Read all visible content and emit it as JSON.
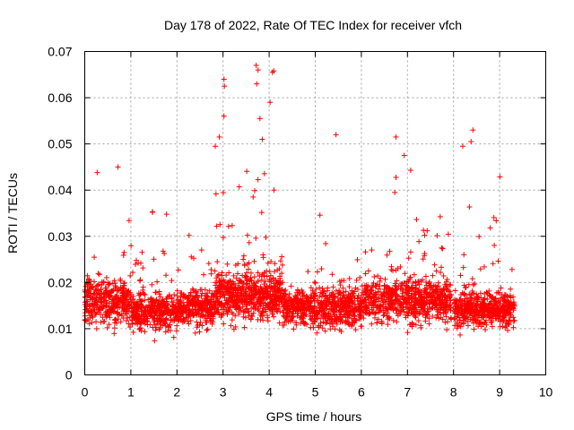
{
  "chart_data": {
    "type": "scatter",
    "title": "Day 178 of 2022, Rate Of TEC Index for receiver vfch",
    "xlabel": "GPS time / hours",
    "ylabel": "ROTI / TECUs",
    "xlim": [
      0,
      10
    ],
    "ylim": [
      0,
      0.07
    ],
    "xticks": [
      "0",
      "1",
      "2",
      "3",
      "4",
      "5",
      "6",
      "7",
      "8",
      "9",
      "10"
    ],
    "yticks": [
      "0",
      "0.01",
      "0.02",
      "0.03",
      "0.04",
      "0.05",
      "0.06",
      "0.07"
    ],
    "grid": true,
    "marker": "+",
    "color": "#ff0000",
    "seed": 178,
    "points_estimated": 3600,
    "x_range_of_data": [
      0.0,
      9.33
    ],
    "gap": [
      7.95,
      8.02
    ],
    "typical_band": [
      0.007,
      0.028
    ],
    "notable_points": [
      {
        "x": 3.02,
        "y": 0.064
      },
      {
        "x": 3.03,
        "y": 0.0625
      },
      {
        "x": 3.72,
        "y": 0.067
      },
      {
        "x": 3.76,
        "y": 0.066
      },
      {
        "x": 4.07,
        "y": 0.0655
      },
      {
        "x": 4.1,
        "y": 0.0658
      },
      {
        "x": 3.73,
        "y": 0.063
      },
      {
        "x": 2.92,
        "y": 0.0515
      },
      {
        "x": 3.02,
        "y": 0.056
      },
      {
        "x": 5.45,
        "y": 0.052
      },
      {
        "x": 6.75,
        "y": 0.0515
      },
      {
        "x": 8.42,
        "y": 0.053
      },
      {
        "x": 8.38,
        "y": 0.0505
      },
      {
        "x": 8.2,
        "y": 0.0495
      },
      {
        "x": 3.85,
        "y": 0.051
      },
      {
        "x": 4.02,
        "y": 0.059
      },
      {
        "x": 3.8,
        "y": 0.0555
      },
      {
        "x": 0.72,
        "y": 0.045
      },
      {
        "x": 0.27,
        "y": 0.0438
      },
      {
        "x": 7.07,
        "y": 0.0443
      },
      {
        "x": 6.93,
        "y": 0.0475
      }
    ],
    "density_profile": [
      {
        "x0": 0.0,
        "x1": 1.0,
        "center": 0.016,
        "spread": 0.006,
        "peak": 0.041
      },
      {
        "x0": 1.0,
        "x1": 2.0,
        "center": 0.0135,
        "spread": 0.005,
        "peak": 0.035
      },
      {
        "x0": 2.0,
        "x1": 2.8,
        "center": 0.0145,
        "spread": 0.005,
        "peak": 0.035
      },
      {
        "x0": 2.8,
        "x1": 4.3,
        "center": 0.017,
        "spread": 0.007,
        "peak": 0.045
      },
      {
        "x0": 4.3,
        "x1": 5.0,
        "center": 0.0145,
        "spread": 0.005,
        "peak": 0.032
      },
      {
        "x0": 5.0,
        "x1": 6.0,
        "center": 0.0145,
        "spread": 0.006,
        "peak": 0.037
      },
      {
        "x0": 6.0,
        "x1": 7.95,
        "center": 0.016,
        "spread": 0.006,
        "peak": 0.039
      },
      {
        "x0": 8.02,
        "x1": 9.33,
        "center": 0.014,
        "spread": 0.005,
        "peak": 0.036
      }
    ]
  }
}
